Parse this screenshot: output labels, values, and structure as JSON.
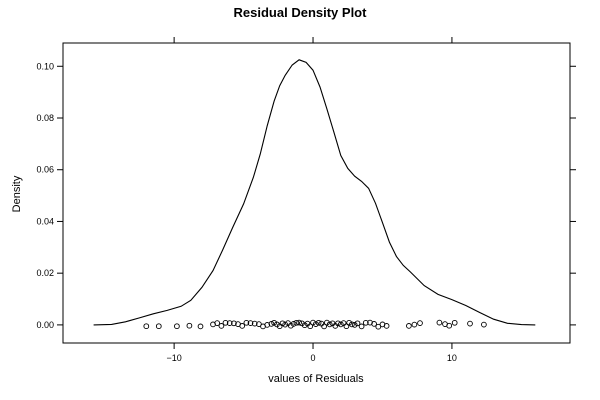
{
  "chart_data": {
    "type": "line",
    "title": "Residual Density Plot",
    "xlabel": "values of Residuals",
    "ylabel": "Density",
    "xlim": [
      -18,
      18.5
    ],
    "ylim": [
      -0.007,
      0.109
    ],
    "x_ticks": [
      -10,
      0,
      10
    ],
    "x_tick_labels": [
      "−10",
      "0",
      "10"
    ],
    "y_ticks": [
      0.0,
      0.02,
      0.04,
      0.06,
      0.08,
      0.1
    ],
    "y_tick_labels": [
      "0.00",
      "0.02",
      "0.04",
      "0.06",
      "0.08",
      "0.10"
    ],
    "grid": false,
    "series": [
      {
        "x": [
          -15.8,
          -14.5,
          -13.5,
          -12.5,
          -11.5,
          -10.5,
          -9.5,
          -8.8,
          -8.0,
          -7.2,
          -6.5,
          -5.8,
          -5.0,
          -4.3,
          -3.8,
          -3.3,
          -2.8,
          -2.4,
          -2.0,
          -1.5,
          -1.0,
          -0.5,
          0.0,
          0.5,
          1.0,
          1.5,
          2.0,
          2.5,
          3.0,
          3.5,
          4.0,
          4.5,
          5.0,
          5.5,
          6.0,
          6.5,
          7.0,
          8.0,
          9.0,
          10.0,
          11.0,
          12.0,
          13.0,
          14.0,
          15.0,
          16.0
        ],
        "values": [
          0.0,
          0.0002,
          0.0012,
          0.0027,
          0.0043,
          0.0056,
          0.0072,
          0.0095,
          0.0145,
          0.021,
          0.029,
          0.0375,
          0.0468,
          0.057,
          0.066,
          0.077,
          0.0865,
          0.0925,
          0.0965,
          0.1005,
          0.1025,
          0.1015,
          0.0985,
          0.092,
          0.0835,
          0.0745,
          0.0655,
          0.0605,
          0.0575,
          0.0555,
          0.0528,
          0.047,
          0.0395,
          0.032,
          0.0265,
          0.023,
          0.0205,
          0.0152,
          0.0118,
          0.0098,
          0.0075,
          0.0048,
          0.0022,
          0.0006,
          0.0001,
          0.0
        ]
      }
    ],
    "rug_points": [
      -12.0,
      -11.1,
      -9.8,
      -8.9,
      -8.1,
      -7.2,
      -6.9,
      -6.6,
      -6.3,
      -6.0,
      -5.7,
      -5.4,
      -5.1,
      -4.8,
      -4.5,
      -4.2,
      -3.9,
      -3.6,
      -3.3,
      -3.0,
      -2.8,
      -2.6,
      -2.4,
      -2.2,
      -2.0,
      -1.8,
      -1.6,
      -1.4,
      -1.2,
      -1.0,
      -0.8,
      -0.6,
      -0.4,
      -0.2,
      0.0,
      0.2,
      0.4,
      0.6,
      0.8,
      1.0,
      1.2,
      1.4,
      1.6,
      1.8,
      2.0,
      2.2,
      2.4,
      2.6,
      2.8,
      3.0,
      3.2,
      3.5,
      3.8,
      4.1,
      4.4,
      4.7,
      5.0,
      5.3,
      6.9,
      7.3,
      7.7,
      9.1,
      9.5,
      9.8,
      10.2,
      11.3,
      12.3
    ],
    "rug_offsets": [
      -0.0005,
      -0.0005,
      -0.0005,
      -0.0003,
      -0.0006,
      0.0002,
      0.0007,
      -0.0004,
      0.0008,
      0.0007,
      0.0006,
      0.0003,
      -0.0004,
      0.0008,
      0.0007,
      0.0005,
      0.0003,
      -0.0006,
      0.0,
      0.0004,
      0.0008,
      0.0002,
      -0.0005,
      0.0006,
      0.0001,
      0.0007,
      -0.0003,
      0.0004,
      0.0008,
      0.0009,
      0.0006,
      -0.0001,
      0.0005,
      -0.0005,
      0.0009,
      0.0003,
      0.0008,
      0.0005,
      -0.0006,
      0.0009,
      0.0002,
      0.0006,
      -0.0004,
      0.0006,
      0.0002,
      0.0007,
      -0.0005,
      0.0008,
      0.0002,
      0.0,
      0.0006,
      -0.0006,
      0.0008,
      0.0009,
      0.0004,
      -0.0007,
      0.0002,
      -0.0004,
      -0.0004,
      0.0001,
      0.0007,
      0.0009,
      0.0003,
      -0.0003,
      0.0008,
      0.0005,
      0.0001
    ]
  }
}
